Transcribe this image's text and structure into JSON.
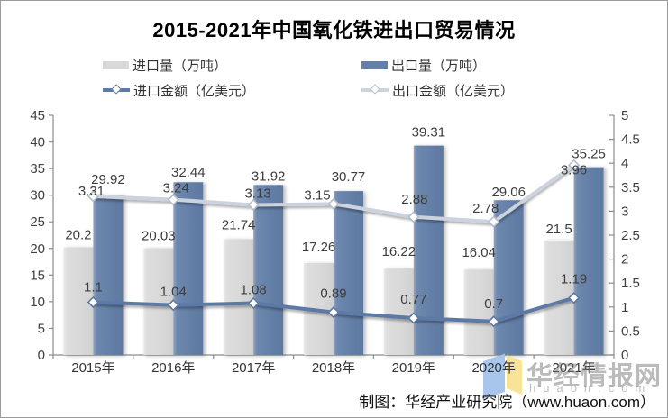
{
  "title": "2015-2021年中国氧化铁进出口贸易情况",
  "legend": [
    {
      "label": "进口量（万吨）",
      "type": "bar",
      "color": "#d9d9d9"
    },
    {
      "label": "出口量（万吨）",
      "type": "bar",
      "color": "#6480a9"
    },
    {
      "label": "进口金额（亿美元）",
      "type": "line",
      "color": "#5d79a5"
    },
    {
      "label": "出口金额（亿美元）",
      "type": "line",
      "color": "#ccd3df"
    }
  ],
  "chart_data": {
    "type": "bar+line combo",
    "categories": [
      "2015年",
      "2016年",
      "2017年",
      "2018年",
      "2019年",
      "2020年",
      "2021年"
    ],
    "series": [
      {
        "name": "进口量（万吨）",
        "type": "bar",
        "axis": "left",
        "color": "#d9d9d9",
        "values": [
          20.2,
          20.03,
          21.74,
          17.26,
          16.22,
          16.04,
          21.5
        ]
      },
      {
        "name": "出口量（万吨）",
        "type": "bar",
        "axis": "left",
        "color": "#6480a9",
        "values": [
          29.92,
          32.44,
          31.92,
          30.77,
          39.31,
          29.06,
          35.25
        ]
      },
      {
        "name": "进口金额（亿美元）",
        "type": "line",
        "axis": "right",
        "color": "#5d79a5",
        "values": [
          1.1,
          1.04,
          1.08,
          0.89,
          0.77,
          0.7,
          1.19
        ]
      },
      {
        "name": "出口金额（亿美元）",
        "type": "line",
        "axis": "right",
        "color": "#ccd3df",
        "values": [
          3.31,
          3.24,
          3.13,
          3.15,
          2.88,
          2.78,
          3.96
        ]
      }
    ],
    "left_axis": {
      "min": 0,
      "max": 45,
      "step": 5,
      "ticks": [
        45,
        40,
        35,
        30,
        25,
        20,
        15,
        10,
        5,
        0
      ]
    },
    "right_axis": {
      "min": 0,
      "max": 5,
      "step": 0.5,
      "ticks": [
        5,
        4.5,
        4,
        3.5,
        3,
        2.5,
        2,
        1.5,
        1,
        0.5,
        0
      ]
    },
    "grid": false,
    "legend_position": "top"
  },
  "footer": {
    "credit": "制图：华经产业研究院（www.huaon.com）"
  },
  "watermark": {
    "brand": "华经情报网",
    "domain": "huaon.com",
    "logo_blue": "#a3c3ea",
    "logo_yellow": "#f7e391"
  }
}
